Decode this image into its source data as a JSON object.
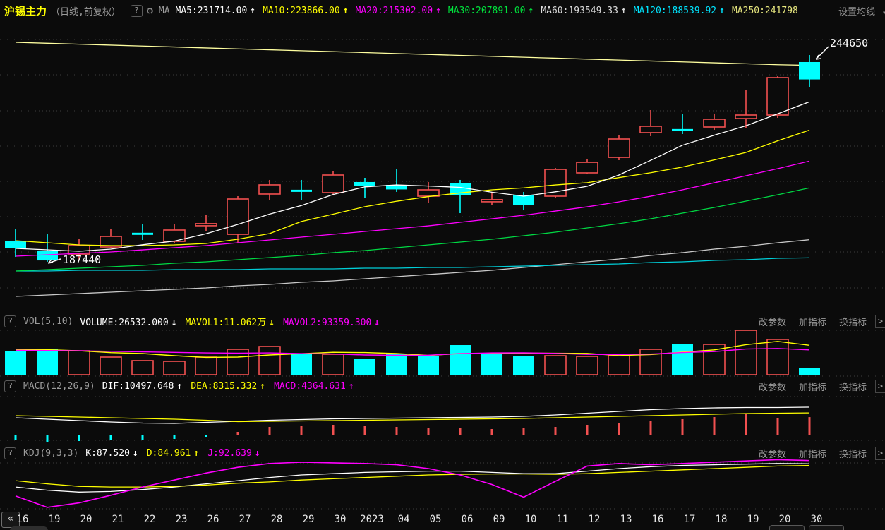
{
  "header": {
    "title": "沪锡主力",
    "subtitle": "（日线,前复权）",
    "help_icon": "?",
    "gear_icon": "⚙",
    "ma_prefix": "MA",
    "ma_items": [
      {
        "name": "ma5-value",
        "label": "MA5:231714.00",
        "arrow": "↑",
        "color": "#ffffff"
      },
      {
        "name": "ma10-value",
        "label": "MA10:223866.00",
        "arrow": "↑",
        "color": "#ffff00"
      },
      {
        "name": "ma20-value",
        "label": "MA20:215302.00",
        "arrow": "↑",
        "color": "#ff00ff"
      },
      {
        "name": "ma30-value",
        "label": "MA30:207891.00",
        "arrow": "↑",
        "color": "#00e13c"
      },
      {
        "name": "ma60-value",
        "label": "MA60:193549.33",
        "arrow": "↑",
        "color": "#dcdcdc"
      },
      {
        "name": "ma120-value",
        "label": "MA120:188539.92",
        "arrow": "↑",
        "color": "#00e5ff"
      },
      {
        "name": "ma250-value",
        "label": "MA250:241798",
        "arrow": "",
        "color": "#e8e87f"
      }
    ],
    "settings_label": "设置均线",
    "settings_arrow": "▾"
  },
  "panes": {
    "vol": {
      "help_icon": "?",
      "name": "VOL(5,10)",
      "items": [
        {
          "name": "volume-value",
          "label": "VOLUME:26532.000",
          "arrow": "↓",
          "color": "#ffffff"
        },
        {
          "name": "mavol1-value",
          "label": "MAVOL1:11.062万",
          "arrow": "↓",
          "color": "#ffff00"
        },
        {
          "name": "mavol2-value",
          "label": "MAVOL2:93359.300",
          "arrow": "↓",
          "color": "#ff00ff"
        }
      ],
      "buttons": [
        "改参数",
        "加指标",
        "换指标"
      ],
      "chevron": ">"
    },
    "macd": {
      "help_icon": "?",
      "name": "MACD(12,26,9)",
      "items": [
        {
          "name": "dif-value",
          "label": "DIF:10497.648",
          "arrow": "↑",
          "color": "#ffffff"
        },
        {
          "name": "dea-value",
          "label": "DEA:8315.332",
          "arrow": "↑",
          "color": "#ffff00"
        },
        {
          "name": "macd-value",
          "label": "MACD:4364.631",
          "arrow": "↑",
          "color": "#ff00ff"
        }
      ],
      "buttons": [
        "改参数",
        "加指标",
        "换指标"
      ],
      "chevron": ">"
    },
    "kdj": {
      "help_icon": "?",
      "name": "KDJ(9,3,3)",
      "items": [
        {
          "name": "k-value",
          "label": "K:87.520",
          "arrow": "↓",
          "color": "#ffffff"
        },
        {
          "name": "d-value",
          "label": "D:84.961",
          "arrow": "↑",
          "color": "#ffff00"
        },
        {
          "name": "j-value",
          "label": "J:92.639",
          "arrow": "↓",
          "color": "#ff00ff"
        }
      ],
      "buttons": [
        "改参数",
        "加指标",
        "换指标"
      ],
      "chevron": ">"
    }
  },
  "axis": {
    "back_icon": "«",
    "labels": [
      "16",
      "19",
      "20",
      "21",
      "22",
      "23",
      "26",
      "27",
      "28",
      "29",
      "30",
      "2023",
      "04",
      "05",
      "06",
      "09",
      "10",
      "11",
      "12",
      "13",
      "16",
      "17",
      "18",
      "19",
      "20",
      "30"
    ]
  },
  "annotations": {
    "high": "244650",
    "low": "187440"
  },
  "colors": {
    "up": "#f25050",
    "down": "#00ffff",
    "bg": "#0b0b0b",
    "ma5": "#ffffff",
    "ma10": "#ffff00",
    "ma20": "#ff00ff",
    "ma30": "#00d843",
    "ma60": "#c9c9c9",
    "ma120": "#00cfd9",
    "ma250": "#ffffa0",
    "grid": "#3d3d3d",
    "separator": "#2c2c2c",
    "text": "#e8e8e8"
  },
  "chart_data": [
    {
      "type": "candlestick",
      "title": "沪锡主力 日线 前复权",
      "categories": [
        "16",
        "19",
        "20",
        "21",
        "22",
        "23",
        "26",
        "27",
        "28",
        "29",
        "30",
        "2023",
        "04",
        "05",
        "06",
        "09",
        "10",
        "11",
        "12",
        "13",
        "16",
        "17",
        "18",
        "19",
        "20",
        "30"
      ],
      "ylim": [
        173000,
        254000
      ],
      "grid": true,
      "ohlc": [
        [
          193090,
          196410,
          188790,
          191140
        ],
        [
          190550,
          195040,
          187440,
          187810
        ],
        [
          189570,
          193870,
          188010,
          191920
        ],
        [
          191530,
          196410,
          191140,
          194460
        ],
        [
          195470,
          197780,
          193480,
          195400
        ],
        [
          193090,
          197780,
          192700,
          196220
        ],
        [
          197950,
          200320,
          196020,
          197990
        ],
        [
          195040,
          205590,
          192500,
          204810
        ],
        [
          206180,
          210090,
          204610,
          208720
        ],
        [
          207370,
          210090,
          204610,
          207330
        ],
        [
          206570,
          212430,
          206180,
          211450
        ],
        [
          209500,
          210670,
          205200,
          208520
        ],
        [
          208720,
          213010,
          206770,
          207460
        ],
        [
          205590,
          209500,
          203830,
          207350
        ],
        [
          209300,
          210090,
          200900,
          205790
        ],
        [
          204590,
          206770,
          203240,
          204630
        ],
        [
          205790,
          206770,
          201680,
          203240
        ],
        [
          205590,
          213400,
          205200,
          213010
        ],
        [
          212040,
          215940,
          211650,
          214960
        ],
        [
          216330,
          222390,
          215550,
          221410
        ],
        [
          223170,
          229420,
          222200,
          224930
        ],
        [
          224170,
          228250,
          222780,
          224130
        ],
        [
          224730,
          228450,
          223950,
          226880
        ],
        [
          227070,
          234890,
          224340,
          228050
        ],
        [
          228050,
          238790,
          227270,
          238400
        ],
        [
          242700,
          244650,
          235860,
          237900
        ]
      ],
      "dir": [
        "d",
        "d",
        "u",
        "u",
        "d",
        "u",
        "u",
        "u",
        "u",
        "d",
        "u",
        "d",
        "d",
        "u",
        "d",
        "u",
        "d",
        "u",
        "u",
        "u",
        "u",
        "d",
        "u",
        "u",
        "u",
        "d"
      ],
      "series": [
        {
          "name": "MA5",
          "color": "#ffffff",
          "values": [
            191140,
            190750,
            190360,
            190940,
            192150,
            193170,
            195200,
            197780,
            200630,
            203010,
            206060,
            208170,
            208700,
            208400,
            208030,
            206690,
            205590,
            206800,
            208320,
            211450,
            215510,
            219690,
            222470,
            225080,
            228400,
            231714
          ]
        },
        {
          "name": "MA10",
          "color": "#ffff00",
          "values": [
            193290,
            192700,
            192110,
            191920,
            191920,
            192110,
            192500,
            193680,
            195240,
            198580,
            200610,
            202690,
            204190,
            205480,
            206510,
            207350,
            207880,
            208700,
            209320,
            210730,
            212080,
            213640,
            215630,
            217700,
            220930,
            223866
          ]
        },
        {
          "name": "MA20",
          "color": "#ff00ff",
          "values": [
            188990,
            189380,
            189770,
            190160,
            190740,
            191330,
            191920,
            192700,
            193480,
            194260,
            195040,
            195820,
            196600,
            197380,
            198360,
            199330,
            200310,
            201480,
            202650,
            204020,
            205580,
            207340,
            209290,
            211250,
            213200,
            215302
          ]
        },
        {
          "name": "MA30",
          "color": "#00d843",
          "values": [
            184890,
            185280,
            185670,
            186060,
            186450,
            187040,
            187430,
            188010,
            188600,
            189190,
            189970,
            190550,
            191330,
            192110,
            192900,
            193680,
            194650,
            195630,
            196800,
            197970,
            199340,
            200900,
            202460,
            204220,
            205980,
            207891
          ]
        },
        {
          "name": "MA60",
          "color": "#c9c9c9",
          "values": [
            177860,
            178250,
            178640,
            179030,
            179420,
            179810,
            180200,
            180790,
            181180,
            181770,
            182160,
            182740,
            183330,
            183920,
            184500,
            185090,
            185870,
            186650,
            187430,
            188210,
            189190,
            189970,
            190940,
            191720,
            192700,
            193549.33
          ]
        },
        {
          "name": "MA120",
          "color": "#00cfd9",
          "values": [
            184890,
            184890,
            185080,
            185080,
            185080,
            185280,
            185280,
            185280,
            185470,
            185470,
            185470,
            185670,
            185670,
            185860,
            185860,
            186060,
            186260,
            186450,
            186650,
            186840,
            187230,
            187430,
            187820,
            188010,
            188400,
            188539.92
          ]
        },
        {
          "name": "MA250",
          "color": "#ffffa0",
          "values": [
            248170,
            247910,
            247650,
            247400,
            247140,
            246880,
            246620,
            246360,
            246100,
            245850,
            245590,
            245330,
            245070,
            244810,
            244550,
            244300,
            244040,
            243780,
            243520,
            243260,
            243000,
            242750,
            242490,
            242230,
            241970,
            241798
          ]
        }
      ],
      "annotations": [
        {
          "text": "244650",
          "index": 25,
          "point": "high"
        },
        {
          "text": "187440",
          "index": 1,
          "point": "low"
        }
      ]
    },
    {
      "type": "bar",
      "name": "VOL",
      "values": [
        90200,
        98200,
        90200,
        66300,
        53100,
        50400,
        66300,
        95500,
        106100,
        76900,
        76900,
        61000,
        76900,
        71600,
        111400,
        76900,
        71600,
        71600,
        69000,
        71600,
        95500,
        116700,
        114100,
        167100,
        132700,
        26532
      ],
      "dir": [
        "d",
        "d",
        "u",
        "u",
        "u",
        "u",
        "u",
        "u",
        "u",
        "d",
        "u",
        "d",
        "d",
        "d",
        "d",
        "d",
        "d",
        "u",
        "u",
        "u",
        "u",
        "d",
        "u",
        "u",
        "u",
        "d"
      ],
      "series": [
        {
          "name": "MAVOL1",
          "color": "#ffff00",
          "values": [
            95000,
            94000,
            90000,
            83000,
            79600,
            71640,
            65260,
            66320,
            74280,
            79040,
            84340,
            83280,
            79560,
            72660,
            79560,
            79560,
            81680,
            80620,
            80100,
            72140,
            75860,
            84880,
            93380,
            113000,
            125220,
            110620
          ]
        },
        {
          "name": "MAVOL2",
          "color": "#ff00ff",
          "values": [
            92000,
            91000,
            90000,
            88000,
            86000,
            84000,
            82000,
            81000,
            82000,
            79320,
            77990,
            74270,
            72940,
            73470,
            79300,
            81950,
            82480,
            80090,
            76380,
            75850,
            77710,
            83280,
            87000,
            96550,
            98680,
            93359.3
          ]
        }
      ]
    },
    {
      "type": "line+bar",
      "name": "MACD",
      "series": [
        {
          "name": "DIF",
          "color": "#ffffff",
          "values": [
            6456,
            5918,
            5380,
            4842,
            4438,
            4304,
            4707,
            5111,
            5514,
            5783,
            6052,
            6187,
            6321,
            6456,
            6590,
            6725,
            6994,
            7532,
            8204,
            8877,
            9549,
            9953,
            10222,
            10356,
            10356,
            10497.648
          ]
        },
        {
          "name": "DEA",
          "color": "#ffff00",
          "values": [
            7263,
            6994,
            6725,
            6456,
            6187,
            5918,
            5514,
            4976,
            5111,
            5245,
            5380,
            5514,
            5649,
            5783,
            5918,
            6052,
            6187,
            6456,
            6725,
            6994,
            7263,
            7532,
            7801,
            8070,
            8204,
            8315.332
          ]
        }
      ],
      "hist": [
        -1225,
        -1925,
        -1575,
        -1400,
        -1225,
        -1050,
        -525,
        700,
        1925,
        2100,
        2450,
        2100,
        1925,
        1750,
        1575,
        1400,
        1575,
        1925,
        2450,
        2975,
        3500,
        3850,
        4375,
        5075,
        4200,
        4364.631
      ]
    },
    {
      "type": "line",
      "name": "KDJ",
      "series": [
        {
          "name": "K",
          "color": "#ffffff",
          "values": [
            51,
            46,
            43,
            44,
            47,
            51,
            56,
            61,
            66,
            70,
            72,
            74,
            75,
            76,
            76,
            74,
            72,
            72,
            76,
            80,
            83,
            85,
            86,
            87,
            88,
            87.52
          ]
        },
        {
          "name": "D",
          "color": "#ffff00",
          "values": [
            61,
            56,
            52,
            51,
            51,
            52,
            54,
            57,
            59,
            62,
            64,
            66,
            68,
            70,
            71,
            71.5,
            71.5,
            71,
            72,
            74,
            76,
            78,
            80,
            82,
            84,
            84.961
          ]
        },
        {
          "name": "J",
          "color": "#ff00ff",
          "values": [
            37,
            19,
            26,
            38,
            51,
            62,
            73,
            82,
            88,
            90,
            89,
            88,
            86,
            80,
            70,
            55,
            35,
            60,
            84,
            88,
            86,
            88,
            90,
            92,
            94,
            92.639
          ]
        }
      ]
    }
  ]
}
